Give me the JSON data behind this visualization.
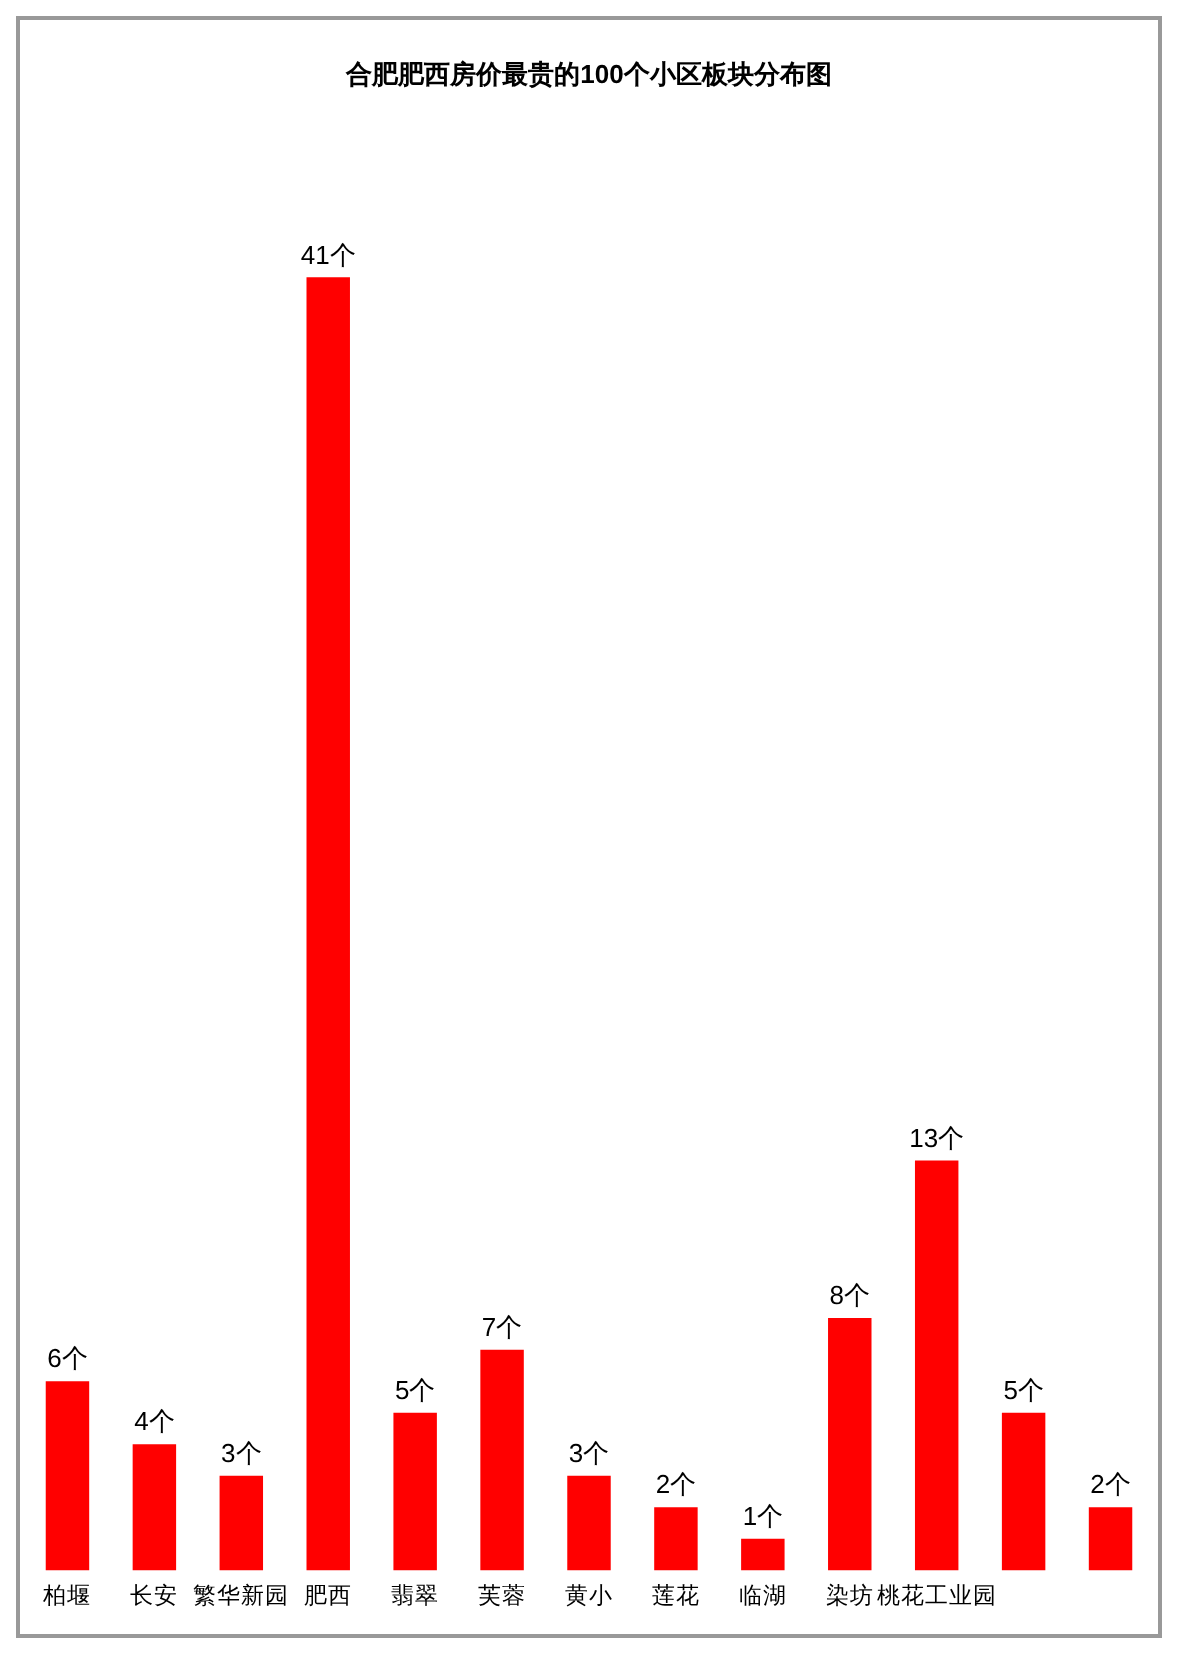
{
  "chart_data": {
    "type": "bar",
    "title": "合肥肥西房价最贵的100个小区板块分布图",
    "categories": [
      "柏堰",
      "长安",
      "繁华新园",
      "肥西",
      "翡翠",
      "芙蓉",
      "黄小",
      "莲花",
      "临湖",
      "染坊",
      "桃花工业园",
      null,
      null
    ],
    "values": [
      6,
      4,
      3,
      41,
      5,
      7,
      3,
      2,
      1,
      8,
      13,
      5,
      2
    ],
    "value_labels": [
      "6个",
      "4个",
      "3个",
      "41个",
      "5个",
      "7个",
      "3个",
      "2个",
      "1个",
      "8个",
      "13个",
      "5个",
      "2个"
    ],
    "color": "#ff0000",
    "grid": false,
    "legend": false
  }
}
